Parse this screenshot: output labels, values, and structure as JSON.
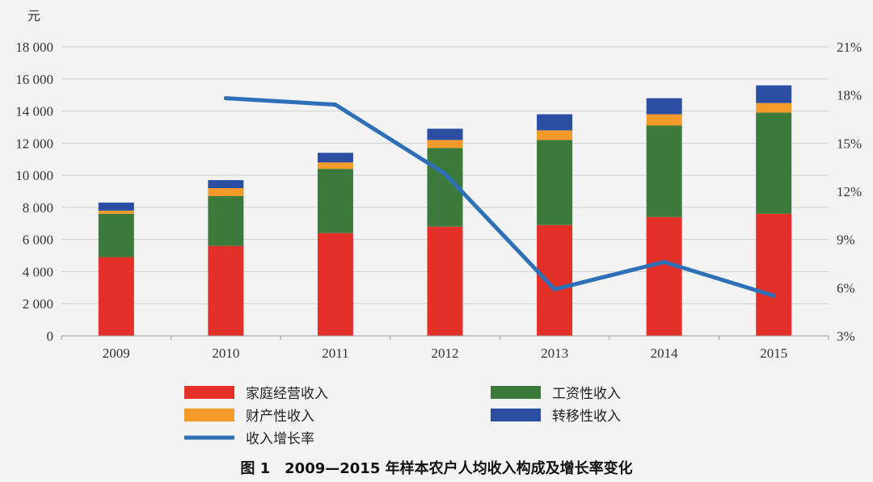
{
  "chart_data": {
    "type": "bar",
    "stacked": true,
    "categories": [
      "2009",
      "2010",
      "2011",
      "2012",
      "2013",
      "2014",
      "2015"
    ],
    "series": [
      {
        "name": "家庭经营收入",
        "color": "#e3312a",
        "values": [
          4900,
          5600,
          6400,
          6800,
          6900,
          7400,
          7600
        ]
      },
      {
        "name": "工资性收入",
        "color": "#3b7a3b",
        "values": [
          2700,
          3100,
          4000,
          4900,
          5300,
          5700,
          6300
        ]
      },
      {
        "name": "财产性收入",
        "color": "#f39a2b",
        "values": [
          200,
          500,
          400,
          500,
          600,
          700,
          600
        ]
      },
      {
        "name": "转移性收入",
        "color": "#2b4ea3",
        "values": [
          500,
          500,
          600,
          700,
          1000,
          1000,
          1100
        ]
      }
    ],
    "line_series": {
      "name": "收入增长率",
      "color": "#2e70b8",
      "axis": "right",
      "values": [
        null,
        17.8,
        17.4,
        13.1,
        5.9,
        7.6,
        5.5
      ]
    },
    "yleft": {
      "unit": "元",
      "ylim": [
        0,
        18000
      ],
      "ticks": [
        0,
        2000,
        4000,
        6000,
        8000,
        10000,
        12000,
        14000,
        16000,
        18000
      ],
      "tick_labels": [
        "0",
        "2 000",
        "4 000",
        "6 000",
        "8 000",
        "10 000",
        "12 000",
        "14 000",
        "16 000",
        "18 000"
      ]
    },
    "yright": {
      "ylim": [
        3,
        21
      ],
      "ticks": [
        3,
        6,
        9,
        12,
        15,
        18,
        21
      ],
      "tick_labels": [
        "3%",
        "6%",
        "9%",
        "12%",
        "15%",
        "18%",
        "21%"
      ]
    },
    "grid": true,
    "legend_position": "bottom",
    "caption": "图 1　2009—2015 年样本农户人均收入构成及增长率变化"
  }
}
